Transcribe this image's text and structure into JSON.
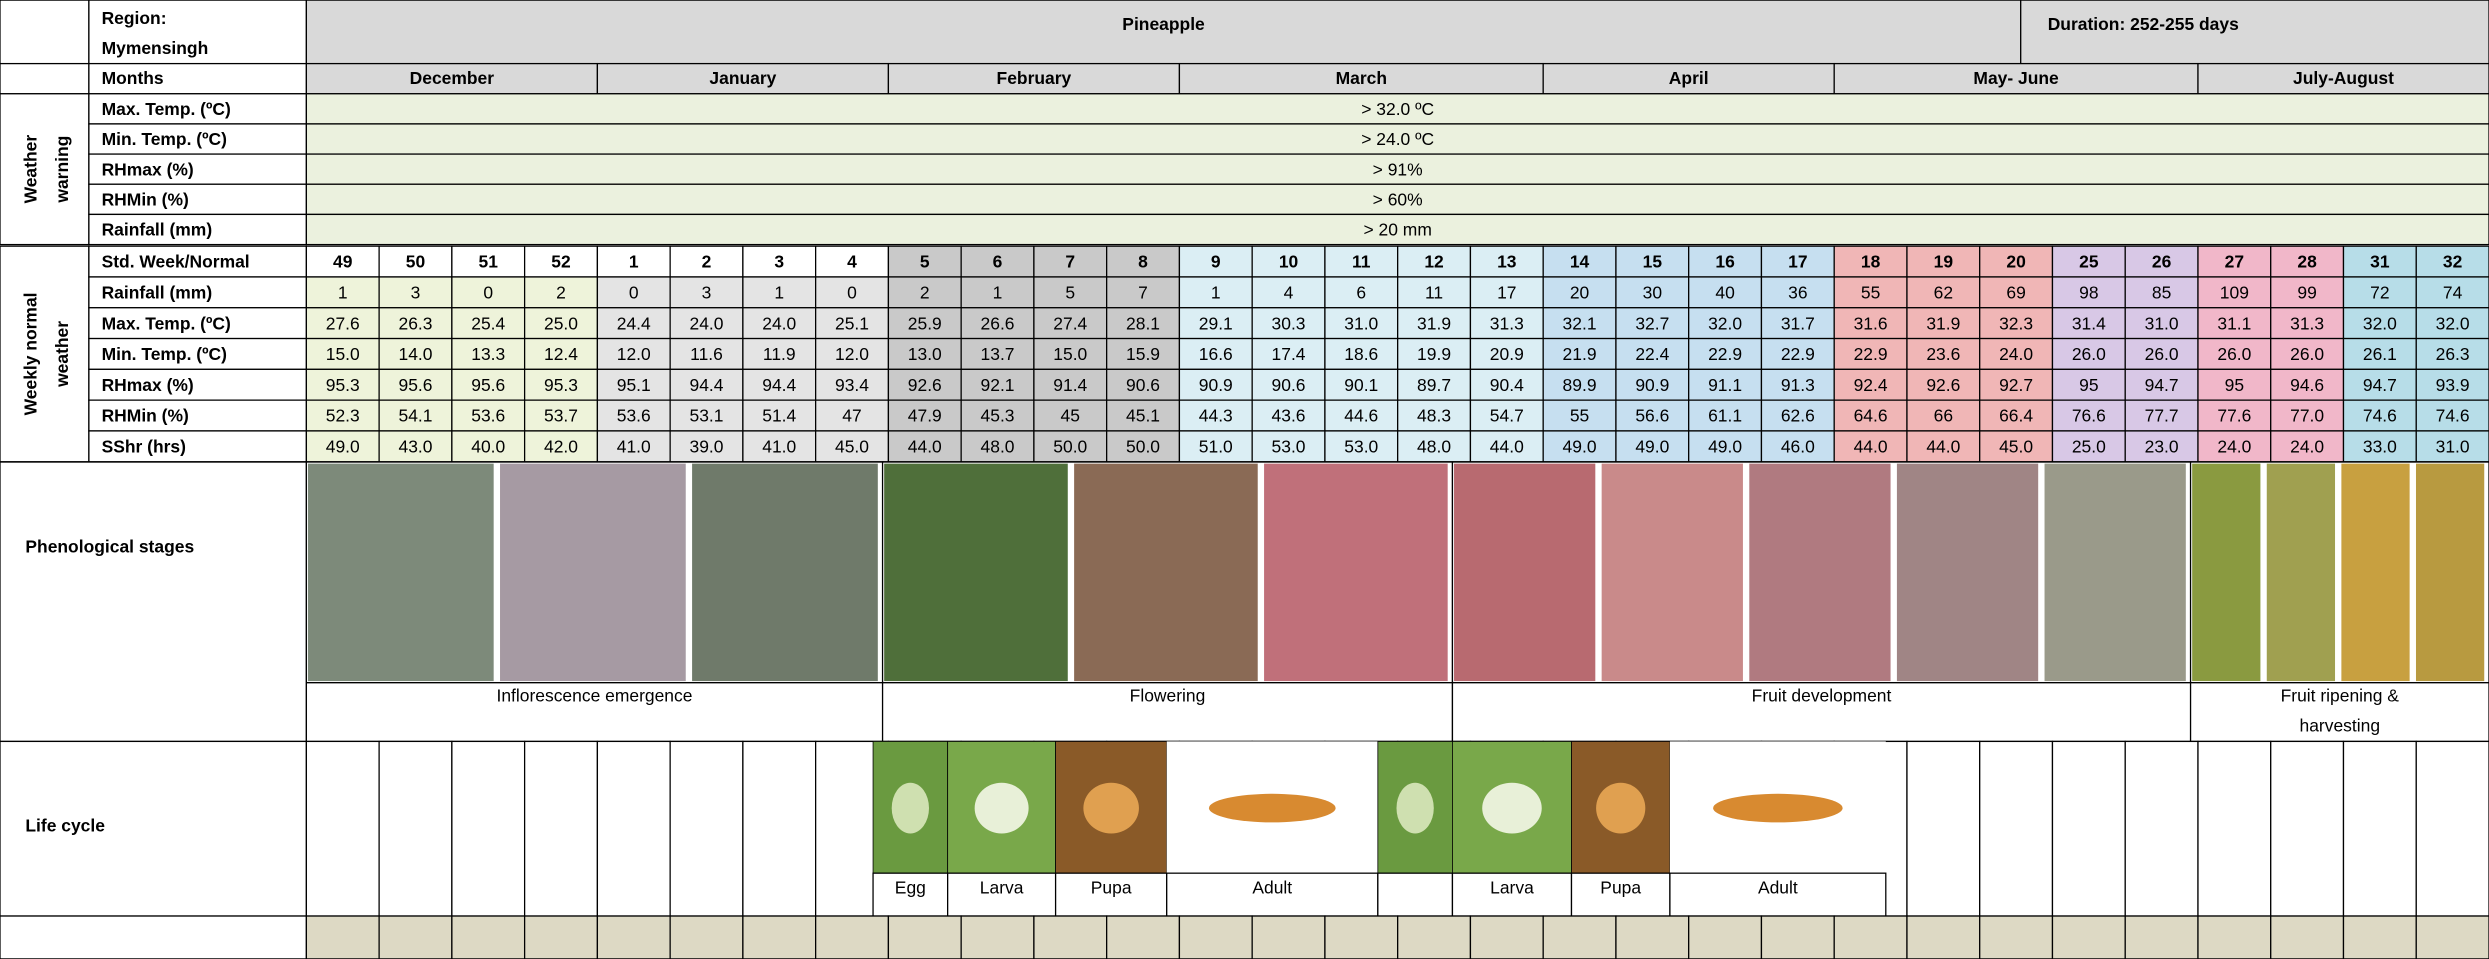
{
  "header": {
    "region": [
      "Region:",
      "Mymensingh"
    ],
    "title": "Pineapple",
    "duration": "Duration: 252-255 days"
  },
  "months": {
    "label": "Months",
    "items": [
      "December",
      "January",
      "February",
      "March",
      "April",
      "May- June",
      "July-August"
    ]
  },
  "warning": {
    "group": [
      "Weather",
      "warning"
    ],
    "rows": [
      {
        "label": "Max. Temp. (ºC)",
        "value": "> 32.0 ºC"
      },
      {
        "label": "Min. Temp. (ºC)",
        "value": "> 24.0 ºC"
      },
      {
        "label": "RHmax (%)",
        "value": "> 91%"
      },
      {
        "label": "RHMin (%)",
        "value": "> 60%"
      },
      {
        "label": "Rainfall (mm)",
        "value": "> 20 mm"
      }
    ]
  },
  "weekly": {
    "group": [
      "Weekly normal",
      "weather"
    ],
    "rows": [
      {
        "label": "Std. Week/Normal",
        "values": [
          "49",
          "50",
          "51",
          "52",
          "1",
          "2",
          "3",
          "4",
          "5",
          "6",
          "7",
          "8",
          "9",
          "10",
          "11",
          "12",
          "13",
          "14",
          "15",
          "16",
          "17",
          "18",
          "19",
          "20",
          "25",
          "26",
          "27",
          "28",
          "31",
          "32"
        ]
      },
      {
        "label": "Rainfall (mm)",
        "values": [
          "1",
          "3",
          "0",
          "2",
          "0",
          "3",
          "1",
          "0",
          "2",
          "1",
          "5",
          "7",
          "1",
          "4",
          "6",
          "11",
          "17",
          "20",
          "30",
          "40",
          "36",
          "55",
          "62",
          "69",
          "98",
          "85",
          "109",
          "99",
          "72",
          "74"
        ]
      },
      {
        "label": "Max. Temp. (ºC)",
        "values": [
          "27.6",
          "26.3",
          "25.4",
          "25.0",
          "24.4",
          "24.0",
          "24.0",
          "25.1",
          "25.9",
          "26.6",
          "27.4",
          "28.1",
          "29.1",
          "30.3",
          "31.0",
          "31.9",
          "31.3",
          "32.1",
          "32.7",
          "32.0",
          "31.7",
          "31.6",
          "31.9",
          "32.3",
          "31.4",
          "31.0",
          "31.1",
          "31.3",
          "32.0",
          "32.0"
        ]
      },
      {
        "label": "Min. Temp. (ºC)",
        "values": [
          "15.0",
          "14.0",
          "13.3",
          "12.4",
          "12.0",
          "11.6",
          "11.9",
          "12.0",
          "13.0",
          "13.7",
          "15.0",
          "15.9",
          "16.6",
          "17.4",
          "18.6",
          "19.9",
          "20.9",
          "21.9",
          "22.4",
          "22.9",
          "22.9",
          "22.9",
          "23.6",
          "24.0",
          "26.0",
          "26.0",
          "26.0",
          "26.0",
          "26.1",
          "26.3"
        ]
      },
      {
        "label": "RHmax (%)",
        "values": [
          "95.3",
          "95.6",
          "95.6",
          "95.3",
          "95.1",
          "94.4",
          "94.4",
          "93.4",
          "92.6",
          "92.1",
          "91.4",
          "90.6",
          "90.9",
          "90.6",
          "90.1",
          "89.7",
          "90.4",
          "89.9",
          "90.9",
          "91.1",
          "91.3",
          "92.4",
          "92.6",
          "92.7",
          "95",
          "94.7",
          "95",
          "94.6",
          "94.7",
          "93.9"
        ]
      },
      {
        "label": "RHMin (%)",
        "values": [
          "52.3",
          "54.1",
          "53.6",
          "53.7",
          "53.6",
          "53.1",
          "51.4",
          "47",
          "47.9",
          "45.3",
          "45",
          "45.1",
          "44.3",
          "43.6",
          "44.6",
          "48.3",
          "54.7",
          "55",
          "56.6",
          "61.1",
          "62.6",
          "64.6",
          "66",
          "66.4",
          "76.6",
          "77.7",
          "77.6",
          "77.0",
          "74.6",
          "74.6"
        ]
      },
      {
        "label": "SShr (hrs)",
        "values": [
          "49.0",
          "43.0",
          "40.0",
          "42.0",
          "41.0",
          "39.0",
          "41.0",
          "45.0",
          "44.0",
          "48.0",
          "50.0",
          "50.0",
          "51.0",
          "53.0",
          "53.0",
          "48.0",
          "44.0",
          "49.0",
          "49.0",
          "49.0",
          "46.0",
          "44.0",
          "44.0",
          "45.0",
          "25.0",
          "23.0",
          "24.0",
          "24.0",
          "33.0",
          "31.0"
        ]
      }
    ]
  },
  "phenology": {
    "label": "Phenological stages",
    "stages": [
      [
        "Inflorescence emergence"
      ],
      [
        "Flowering"
      ],
      [
        "Fruit development"
      ],
      [
        "Fruit ripening &",
        "harvesting"
      ]
    ]
  },
  "life_cycle": {
    "label": "Life cycle",
    "stages": [
      "Egg",
      "Larva",
      "Pupa",
      "Adult",
      "Larva",
      "Pupa",
      "Adult"
    ]
  }
}
